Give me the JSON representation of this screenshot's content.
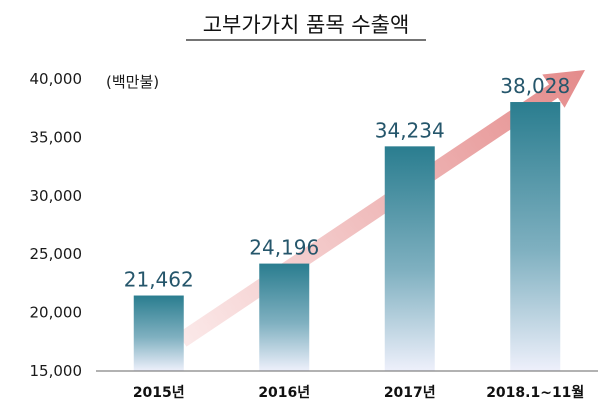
{
  "chart_data": {
    "type": "bar",
    "title": "고부가가치 품목 수출액",
    "unit_label": "(백만불)",
    "categories": [
      "2015년",
      "2016년",
      "2017년",
      "2018.1~11월"
    ],
    "values": [
      21462,
      24196,
      34234,
      38028
    ],
    "value_labels": [
      "21,462",
      "24,196",
      "34,234",
      "38,028"
    ],
    "ylim": [
      15000,
      40000
    ],
    "yticks": [
      15000,
      20000,
      25000,
      30000,
      35000,
      40000
    ],
    "ytick_labels": [
      "15,000",
      "20,000",
      "25,000",
      "30,000",
      "35,000",
      "40,000"
    ],
    "grid": false,
    "legend": "none",
    "trend_arrow": true,
    "colors": {
      "bar_top": "#2a7d8f",
      "bar_mid": "#7fb0c0",
      "bar_bottom": "#eef0fb",
      "value_label": "#25566b",
      "arrow_start": "#fbe9e9",
      "arrow_end": "#e48b8b",
      "axis": "#666666"
    }
  }
}
